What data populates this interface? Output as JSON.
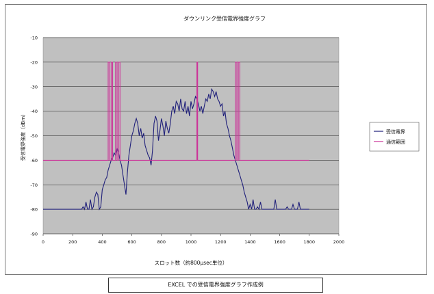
{
  "chart_data": {
    "type": "line",
    "title": "ダウンリンク受信電界強度グラフ",
    "xlabel": "スロット数（約800μsec単位）",
    "ylabel": "受信電界強度（dBm）",
    "xlim": [
      0,
      2000
    ],
    "ylim": [
      -90,
      -10
    ],
    "x_ticks": [
      0,
      200,
      400,
      600,
      800,
      1000,
      1200,
      1400,
      1600,
      1800,
      2000
    ],
    "y_ticks": [
      -10,
      -20,
      -30,
      -40,
      -50,
      -60,
      -70,
      -80,
      -90
    ],
    "grid": "horizontal",
    "legend_position": "right",
    "plot_bg": "#c0c0c0",
    "series": [
      {
        "name": "受信電界",
        "color": "#1f1f7a",
        "points": [
          [
            0,
            -80
          ],
          [
            260,
            -80
          ],
          [
            270,
            -79
          ],
          [
            280,
            -80
          ],
          [
            290,
            -77
          ],
          [
            300,
            -80
          ],
          [
            310,
            -80
          ],
          [
            320,
            -76
          ],
          [
            330,
            -80
          ],
          [
            340,
            -79
          ],
          [
            350,
            -75
          ],
          [
            360,
            -73
          ],
          [
            370,
            -74
          ],
          [
            380,
            -80
          ],
          [
            390,
            -79
          ],
          [
            400,
            -72
          ],
          [
            410,
            -70
          ],
          [
            420,
            -68
          ],
          [
            430,
            -67
          ],
          [
            440,
            -64
          ],
          [
            450,
            -62
          ],
          [
            460,
            -60
          ],
          [
            470,
            -59
          ],
          [
            480,
            -57
          ],
          [
            490,
            -58
          ],
          [
            500,
            -55
          ],
          [
            510,
            -57
          ],
          [
            520,
            -60
          ],
          [
            530,
            -62
          ],
          [
            540,
            -66
          ],
          [
            550,
            -70
          ],
          [
            560,
            -74
          ],
          [
            570,
            -65
          ],
          [
            580,
            -58
          ],
          [
            590,
            -54
          ],
          [
            600,
            -50
          ],
          [
            610,
            -48
          ],
          [
            620,
            -45
          ],
          [
            630,
            -43
          ],
          [
            640,
            -45
          ],
          [
            650,
            -50
          ],
          [
            660,
            -47
          ],
          [
            670,
            -51
          ],
          [
            680,
            -49
          ],
          [
            690,
            -54
          ],
          [
            700,
            -56
          ],
          [
            710,
            -58
          ],
          [
            720,
            -59
          ],
          [
            730,
            -62
          ],
          [
            740,
            -56
          ],
          [
            750,
            -45
          ],
          [
            760,
            -42
          ],
          [
            770,
            -44
          ],
          [
            780,
            -52
          ],
          [
            790,
            -48
          ],
          [
            800,
            -43
          ],
          [
            810,
            -46
          ],
          [
            820,
            -50
          ],
          [
            830,
            -44
          ],
          [
            840,
            -47
          ],
          [
            850,
            -49
          ],
          [
            860,
            -45
          ],
          [
            870,
            -40
          ],
          [
            880,
            -38
          ],
          [
            890,
            -41
          ],
          [
            900,
            -36
          ],
          [
            910,
            -37
          ],
          [
            920,
            -40
          ],
          [
            930,
            -35
          ],
          [
            940,
            -39
          ],
          [
            950,
            -40
          ],
          [
            960,
            -36
          ],
          [
            970,
            -41
          ],
          [
            980,
            -38
          ],
          [
            990,
            -42
          ],
          [
            1000,
            -36
          ],
          [
            1010,
            -39
          ],
          [
            1020,
            -37
          ],
          [
            1030,
            -34
          ],
          [
            1040,
            -35
          ],
          [
            1050,
            -37
          ],
          [
            1060,
            -40
          ],
          [
            1070,
            -38
          ],
          [
            1080,
            -41
          ],
          [
            1090,
            -38
          ],
          [
            1100,
            -35
          ],
          [
            1110,
            -36
          ],
          [
            1120,
            -33
          ],
          [
            1130,
            -35
          ],
          [
            1140,
            -31
          ],
          [
            1150,
            -32
          ],
          [
            1160,
            -34
          ],
          [
            1170,
            -32
          ],
          [
            1180,
            -35
          ],
          [
            1190,
            -36
          ],
          [
            1200,
            -38
          ],
          [
            1210,
            -37
          ],
          [
            1220,
            -42
          ],
          [
            1230,
            -40
          ],
          [
            1240,
            -45
          ],
          [
            1250,
            -47
          ],
          [
            1260,
            -50
          ],
          [
            1270,
            -52
          ],
          [
            1280,
            -55
          ],
          [
            1290,
            -58
          ],
          [
            1300,
            -60
          ],
          [
            1310,
            -62
          ],
          [
            1320,
            -64
          ],
          [
            1330,
            -66
          ],
          [
            1340,
            -68
          ],
          [
            1350,
            -70
          ],
          [
            1360,
            -73
          ],
          [
            1370,
            -75
          ],
          [
            1380,
            -77
          ],
          [
            1390,
            -80
          ],
          [
            1400,
            -78
          ],
          [
            1410,
            -80
          ],
          [
            1420,
            -76
          ],
          [
            1430,
            -80
          ],
          [
            1440,
            -80
          ],
          [
            1450,
            -79
          ],
          [
            1460,
            -80
          ],
          [
            1470,
            -77
          ],
          [
            1480,
            -80
          ],
          [
            1560,
            -80
          ],
          [
            1570,
            -76
          ],
          [
            1580,
            -80
          ],
          [
            1640,
            -80
          ],
          [
            1650,
            -79
          ],
          [
            1660,
            -80
          ],
          [
            1680,
            -80
          ],
          [
            1690,
            -78
          ],
          [
            1700,
            -80
          ],
          [
            1720,
            -80
          ],
          [
            1730,
            -77
          ],
          [
            1740,
            -80
          ],
          [
            1800,
            -80
          ]
        ]
      },
      {
        "name": "通信範囲",
        "color": "#cc3399",
        "points": [
          [
            0,
            -60
          ],
          [
            440,
            -60
          ],
          [
            440,
            -20
          ],
          [
            450,
            -20
          ],
          [
            450,
            -60
          ],
          [
            460,
            -60
          ],
          [
            460,
            -20
          ],
          [
            470,
            -20
          ],
          [
            470,
            -60
          ],
          [
            490,
            -60
          ],
          [
            490,
            -20
          ],
          [
            500,
            -20
          ],
          [
            500,
            -60
          ],
          [
            510,
            -60
          ],
          [
            510,
            -20
          ],
          [
            520,
            -20
          ],
          [
            520,
            -60
          ],
          [
            1040,
            -60
          ],
          [
            1040,
            -20
          ],
          [
            1045,
            -20
          ],
          [
            1045,
            -60
          ],
          [
            1300,
            -60
          ],
          [
            1300,
            -20
          ],
          [
            1310,
            -20
          ],
          [
            1310,
            -60
          ],
          [
            1320,
            -60
          ],
          [
            1320,
            -20
          ],
          [
            1330,
            -20
          ],
          [
            1330,
            -60
          ],
          [
            1800,
            -60
          ]
        ]
      }
    ],
    "caption": "EXCEL での受信電界強度グラフ作成例"
  }
}
